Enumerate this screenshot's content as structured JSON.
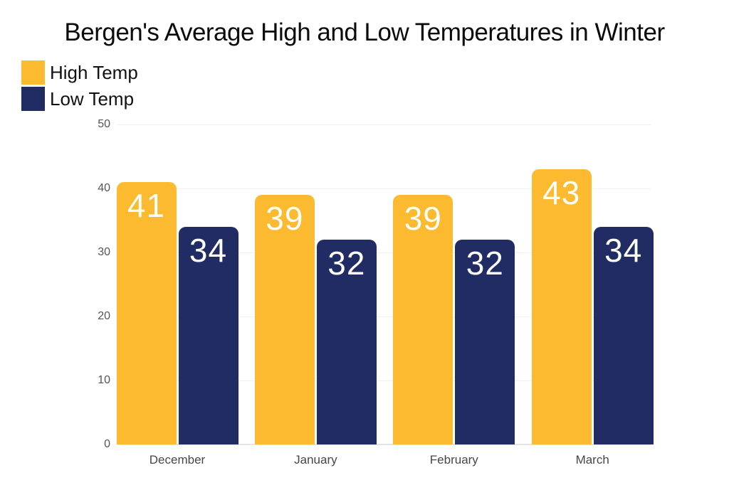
{
  "chart_data": {
    "type": "bar",
    "title": "Bergen's Average High and Low Temperatures in Winter",
    "categories": [
      "December",
      "January",
      "February",
      "March"
    ],
    "series": [
      {
        "name": "High Temp",
        "color": "#FBBA2F",
        "values": [
          41,
          39,
          39,
          43
        ]
      },
      {
        "name": "Low Temp",
        "color": "#202C63",
        "values": [
          34,
          32,
          32,
          34
        ]
      }
    ],
    "ylim": [
      0,
      50
    ],
    "yticks": [
      0,
      10,
      20,
      30,
      40,
      50
    ],
    "grid": true,
    "legend_position": "top-left",
    "bar_labels": true,
    "bar_label_color": "#ffffff",
    "background": "#ffffff"
  }
}
